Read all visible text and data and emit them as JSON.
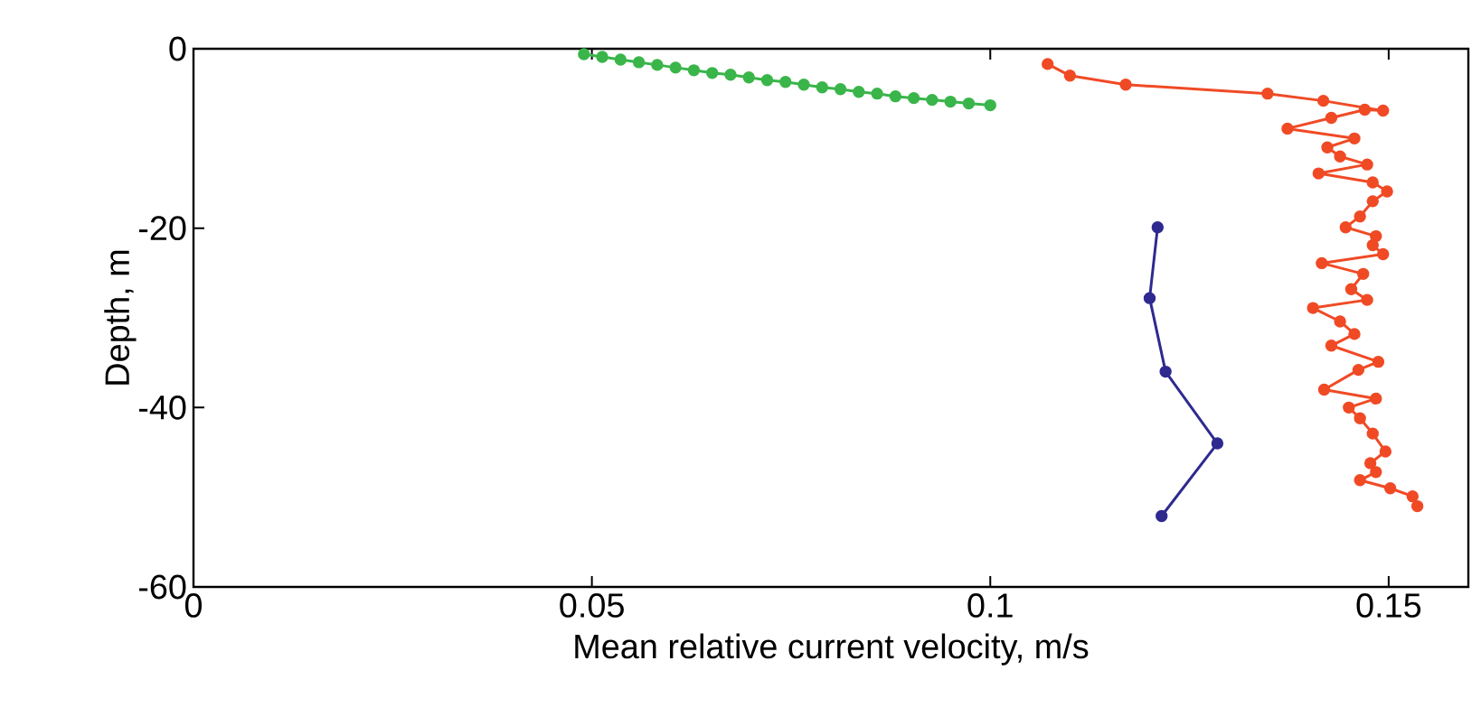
{
  "chart_data": {
    "type": "line",
    "xlabel": "Mean relative current velocity, m/s",
    "ylabel": "Depth, m",
    "xlim": [
      0,
      0.16
    ],
    "ylim": [
      -60,
      0
    ],
    "xticks": [
      0,
      0.05,
      0.1,
      0.15
    ],
    "yticks": [
      -60,
      -40,
      -20,
      0
    ],
    "grid": false,
    "marker": "circle",
    "line_style": "solid",
    "series": [
      {
        "color": "#3ab54a",
        "x": [
          0.049,
          0.0513,
          0.0536,
          0.0559,
          0.0582,
          0.0605,
          0.0628,
          0.0651,
          0.0674,
          0.0697,
          0.072,
          0.0743,
          0.0766,
          0.0789,
          0.0812,
          0.0835,
          0.0858,
          0.0881,
          0.0904,
          0.0927,
          0.095,
          0.0973,
          0.1
        ],
        "values": [
          -0.6,
          -0.9,
          -1.2,
          -1.5,
          -1.8,
          -2.1,
          -2.4,
          -2.7,
          -2.9,
          -3.2,
          -3.5,
          -3.7,
          -4.0,
          -4.3,
          -4.5,
          -4.8,
          -5.0,
          -5.3,
          -5.5,
          -5.7,
          -5.9,
          -6.1,
          -6.3
        ]
      },
      {
        "color": "#2e2a8f",
        "x": [
          0.121,
          0.12,
          0.122,
          0.1285,
          0.1215
        ],
        "values": [
          -19.9,
          -27.8,
          -36,
          -44,
          -52.1
        ]
      },
      {
        "color": "#f04a25",
        "x": [
          0.1072,
          0.11,
          0.117,
          0.1348,
          0.1418,
          0.1493,
          0.147,
          0.1428,
          0.1373,
          0.1457,
          0.1423,
          0.1439,
          0.1473,
          0.1412,
          0.148,
          0.1498,
          0.148,
          0.1464,
          0.1446,
          0.1484,
          0.148,
          0.1493,
          0.1416,
          0.1468,
          0.1453,
          0.1473,
          0.1405,
          0.1439,
          0.1457,
          0.1428,
          0.1487,
          0.1462,
          0.1419,
          0.1484,
          0.145,
          0.1464,
          0.148,
          0.1496,
          0.1477,
          0.1484,
          0.1464,
          0.1502,
          0.153,
          0.1536
        ],
        "values": [
          -1.7,
          -3.0,
          -4.0,
          -5.0,
          -5.8,
          -6.9,
          -6.8,
          -7.7,
          -8.9,
          -10.0,
          -11.0,
          -12.0,
          -12.9,
          -13.9,
          -14.9,
          -15.9,
          -17.0,
          -18.7,
          -19.9,
          -20.9,
          -21.9,
          -22.9,
          -23.9,
          -25.1,
          -26.8,
          -28.0,
          -28.9,
          -30.4,
          -31.8,
          -33.1,
          -34.9,
          -35.8,
          -38.0,
          -39.0,
          -40.0,
          -41.2,
          -42.9,
          -44.9,
          -46.2,
          -47.2,
          -48.1,
          -49.0,
          -49.9,
          -51.0
        ]
      }
    ]
  }
}
